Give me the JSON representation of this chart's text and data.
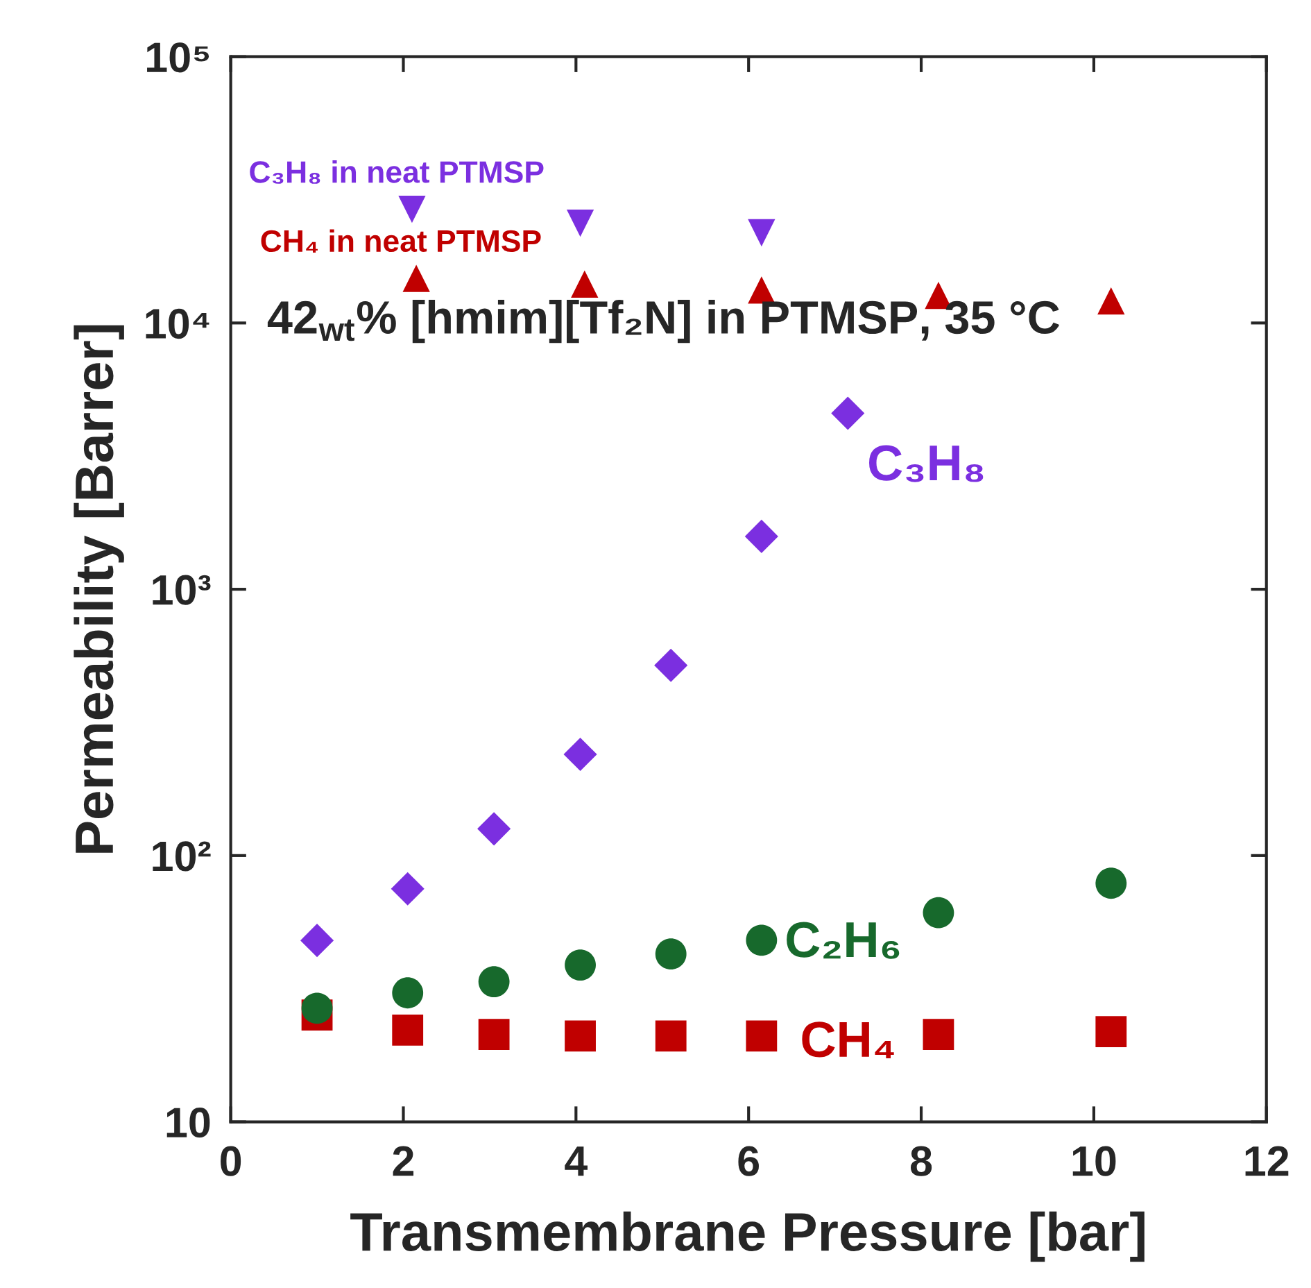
{
  "chart_data": {
    "type": "scatter",
    "xlabel": "Transmembrane Pressure [bar]",
    "ylabel": "Permeability [Barrer]",
    "log": "y",
    "xlim": [
      0,
      12
    ],
    "xticks": [
      0,
      2,
      4,
      6,
      8,
      10,
      12
    ],
    "ylim": [
      10,
      100000
    ],
    "yticks": [
      {
        "value": 10,
        "label": "10"
      },
      {
        "value": 100,
        "label": "10²"
      },
      {
        "value": 1000,
        "label": "10³"
      },
      {
        "value": 10000,
        "label": "10⁴"
      },
      {
        "value": 100000,
        "label": "10⁵"
      }
    ],
    "grid": false,
    "legend": false,
    "annotations": [
      "42$_{wt}$% [hmim][Tf₂N] in PTMSP, 35 °C"
    ],
    "series": [
      {
        "name": "C₃H₈",
        "color": "#7b2fe0",
        "marker": "diamond",
        "x": [
          1.0,
          2.05,
          3.05,
          4.05,
          5.1,
          6.15,
          7.15
        ],
        "values": [
          48,
          75,
          126,
          240,
          518,
          1580,
          4580
        ]
      },
      {
        "name": "C₂H₆",
        "color": "#17692c",
        "marker": "circle",
        "x": [
          1.0,
          2.05,
          3.05,
          4.05,
          5.1,
          6.15,
          8.2,
          10.2
        ],
        "values": [
          26.7,
          30.5,
          33.6,
          38.8,
          42.7,
          48.1,
          61,
          78.7
        ]
      },
      {
        "name": "CH₄",
        "color": "#c00000",
        "marker": "square",
        "x": [
          1.0,
          2.05,
          3.05,
          4.05,
          5.1,
          6.15,
          8.2,
          10.2
        ],
        "values": [
          25.2,
          22.1,
          21.3,
          21.0,
          21.0,
          21.0,
          21.3,
          21.8
        ]
      },
      {
        "name": "C₃H₈ in neat PTMSP",
        "color": "#7b2fe0",
        "marker": "triangle_down",
        "x": [
          2.1,
          4.05,
          6.15
        ],
        "values": [
          26700,
          23700,
          21800
        ]
      },
      {
        "name": "CH₄ in neat PTMSP",
        "color": "#c00000",
        "marker": "triangle",
        "x": [
          2.15,
          4.1,
          6.15,
          8.2,
          10.2
        ],
        "values": [
          14700,
          14000,
          13300,
          12700,
          12100
        ]
      }
    ]
  }
}
